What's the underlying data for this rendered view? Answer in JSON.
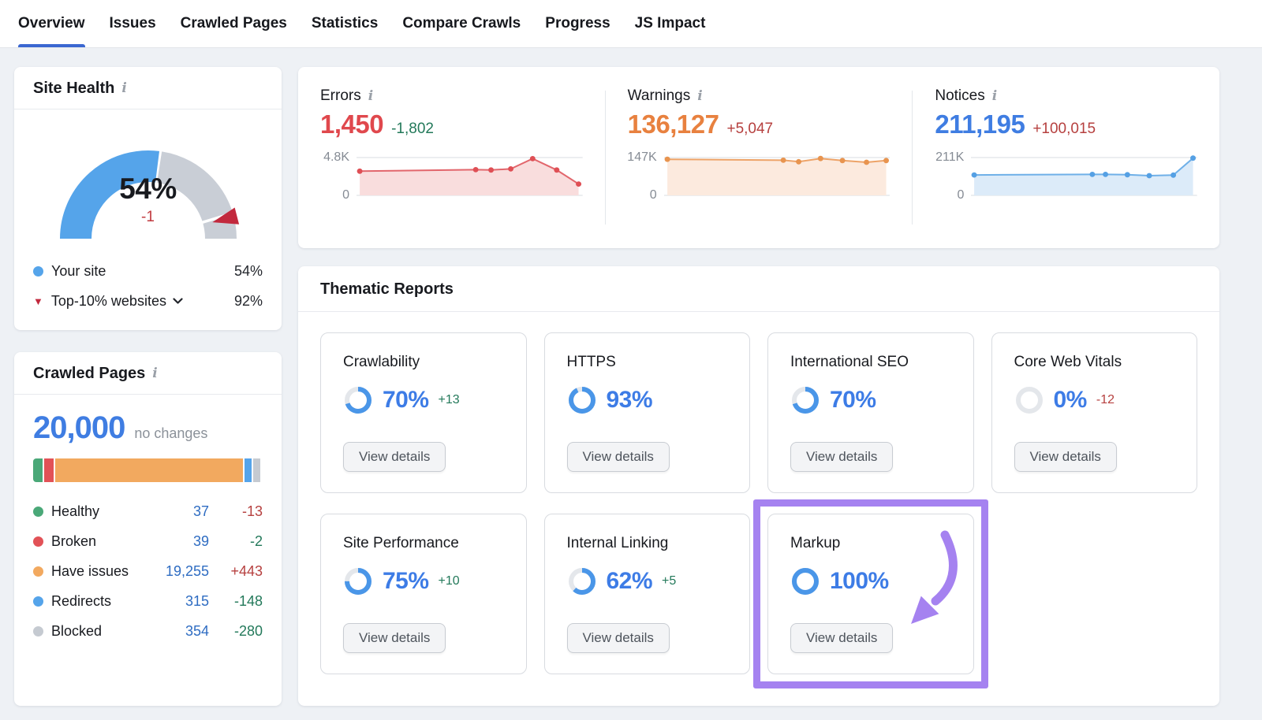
{
  "colors": {
    "accent_blue": "#3f7de2",
    "nav_underline": "#3b67d1",
    "gauge_blue": "#55a4ea",
    "gauge_gray": "#c9ced6",
    "marker_red": "#c2293d",
    "donut_track": "#e4e7eb",
    "donut_fill": "#4a96e8",
    "highlight_purple": "#a582f0",
    "green_change": "#23795a",
    "red_change": "#b6403f"
  },
  "icons": {
    "info": "i",
    "triangle_down": "▼"
  },
  "nav": {
    "active": "Overview",
    "tabs": [
      {
        "label": "Overview"
      },
      {
        "label": "Issues"
      },
      {
        "label": "Crawled Pages"
      },
      {
        "label": "Statistics"
      },
      {
        "label": "Compare Crawls"
      },
      {
        "label": "Progress"
      },
      {
        "label": "JS Impact"
      }
    ]
  },
  "site_health": {
    "title": "Site Health",
    "score": "54%",
    "change": "-1",
    "legend": [
      {
        "label": "Your site",
        "value": "54%"
      },
      {
        "label": "Top-10% websites",
        "value": "92%"
      }
    ]
  },
  "crawled_pages": {
    "title": "Crawled Pages",
    "total": "20,000",
    "note": "no changes",
    "rows": [
      {
        "label": "Healthy",
        "value": "37",
        "change": "-13",
        "change_color": "#b6403f",
        "dot": "#4aa878"
      },
      {
        "label": "Broken",
        "value": "39",
        "change": "-2",
        "change_color": "#23795a",
        "dot": "#e25257"
      },
      {
        "label": "Have issues",
        "value": "19,255",
        "change": "+443",
        "change_color": "#b6403f",
        "dot": "#f2a95f"
      },
      {
        "label": "Redirects",
        "value": "315",
        "change": "-148",
        "change_color": "#23795a",
        "dot": "#55a4ea"
      },
      {
        "label": "Blocked",
        "value": "354",
        "change": "-280",
        "change_color": "#23795a",
        "dot": "#c5cad1"
      }
    ]
  },
  "metrics": [
    {
      "title": "Errors",
      "value": "1,450",
      "value_color": "#e0484d",
      "change": "-1,802",
      "change_color": "#23795a",
      "ymax": "4.8K",
      "ymin": "0"
    },
    {
      "title": "Warnings",
      "value": "136,127",
      "value_color": "#e8813f",
      "change": "+5,047",
      "change_color": "#b6403f",
      "ymax": "147K",
      "ymin": "0"
    },
    {
      "title": "Notices",
      "value": "211,195",
      "value_color": "#3f7de2",
      "change": "+100,015",
      "change_color": "#b6403f",
      "ymax": "211K",
      "ymin": "0"
    }
  ],
  "thematic": {
    "title": "Thematic Reports",
    "button": "View details",
    "cards": [
      {
        "title": "Crawlability",
        "pct": 70,
        "label": "70%",
        "change": "+13",
        "change_color": "#23795a"
      },
      {
        "title": "HTTPS",
        "pct": 93,
        "label": "93%",
        "change": "",
        "change_color": ""
      },
      {
        "title": "International SEO",
        "pct": 70,
        "label": "70%",
        "change": "",
        "change_color": ""
      },
      {
        "title": "Core Web Vitals",
        "pct": 0,
        "label": "0%",
        "change": "-12",
        "change_color": "#b6403f"
      },
      {
        "title": "Site Performance",
        "pct": 75,
        "label": "75%",
        "change": "+10",
        "change_color": "#23795a"
      },
      {
        "title": "Internal Linking",
        "pct": 62,
        "label": "62%",
        "change": "+5",
        "change_color": "#23795a"
      },
      {
        "title": "Markup",
        "pct": 100,
        "label": "100%",
        "change": "",
        "change_color": "",
        "highlighted": true
      }
    ]
  },
  "chart_data": [
    {
      "id": "site_health_gauge",
      "type": "gauge",
      "your_site_pct": 54,
      "change": -1,
      "benchmark_pct": 92,
      "series_labels": [
        "Your site",
        "Top-10% websites"
      ]
    },
    {
      "id": "crawled_pages_bar",
      "type": "bar",
      "stacked": true,
      "categories": [
        "Healthy",
        "Broken",
        "Have issues",
        "Redirects",
        "Blocked"
      ],
      "values": [
        37,
        39,
        19255,
        315,
        354
      ],
      "total": 20000,
      "display_pcts": [
        4.2,
        4.2,
        81.6,
        3.2,
        3.2
      ],
      "colors": [
        "#4aa878",
        "#e25257",
        "#f2a95f",
        "#55a4ea",
        "#c5cad1"
      ]
    },
    {
      "id": "errors_trend",
      "type": "area",
      "title": "Errors",
      "ylim": [
        0,
        4800
      ],
      "ymax_label": "4.8K",
      "line": "#e2666c",
      "dot": "#df4f55",
      "fill": "#f9dddd",
      "points": [
        [
          0,
          0.64
        ],
        [
          0.53,
          0.68
        ],
        [
          0.6,
          0.67
        ],
        [
          0.69,
          0.7
        ],
        [
          0.79,
          0.97
        ],
        [
          0.9,
          0.67
        ],
        [
          1,
          0.3
        ]
      ]
    },
    {
      "id": "warnings_trend",
      "type": "area",
      "title": "Warnings",
      "ylim": [
        0,
        147000
      ],
      "ymax_label": "147K",
      "line": "#eda368",
      "dot": "#e8944f",
      "fill": "#fceade",
      "points": [
        [
          0,
          0.955
        ],
        [
          0.53,
          0.93
        ],
        [
          0.6,
          0.89
        ],
        [
          0.7,
          0.975
        ],
        [
          0.8,
          0.92
        ],
        [
          0.91,
          0.875
        ],
        [
          1,
          0.92
        ]
      ]
    },
    {
      "id": "notices_trend",
      "type": "area",
      "title": "Notices",
      "ylim": [
        0,
        211000
      ],
      "ymax_label": "211K",
      "line": "#6fb0e8",
      "dot": "#55a0e4",
      "fill": "#dcebf9",
      "points": [
        [
          0,
          0.54
        ],
        [
          0.54,
          0.555
        ],
        [
          0.6,
          0.555
        ],
        [
          0.7,
          0.545
        ],
        [
          0.8,
          0.52
        ],
        [
          0.91,
          0.535
        ],
        [
          1,
          0.985
        ]
      ]
    },
    {
      "id": "thematic_donuts",
      "type": "pie",
      "items": [
        {
          "label": "Crawlability",
          "pct": 70
        },
        {
          "label": "HTTPS",
          "pct": 93
        },
        {
          "label": "International SEO",
          "pct": 70
        },
        {
          "label": "Core Web Vitals",
          "pct": 0
        },
        {
          "label": "Site Performance",
          "pct": 75
        },
        {
          "label": "Internal Linking",
          "pct": 62
        },
        {
          "label": "Markup",
          "pct": 100
        }
      ]
    }
  ]
}
